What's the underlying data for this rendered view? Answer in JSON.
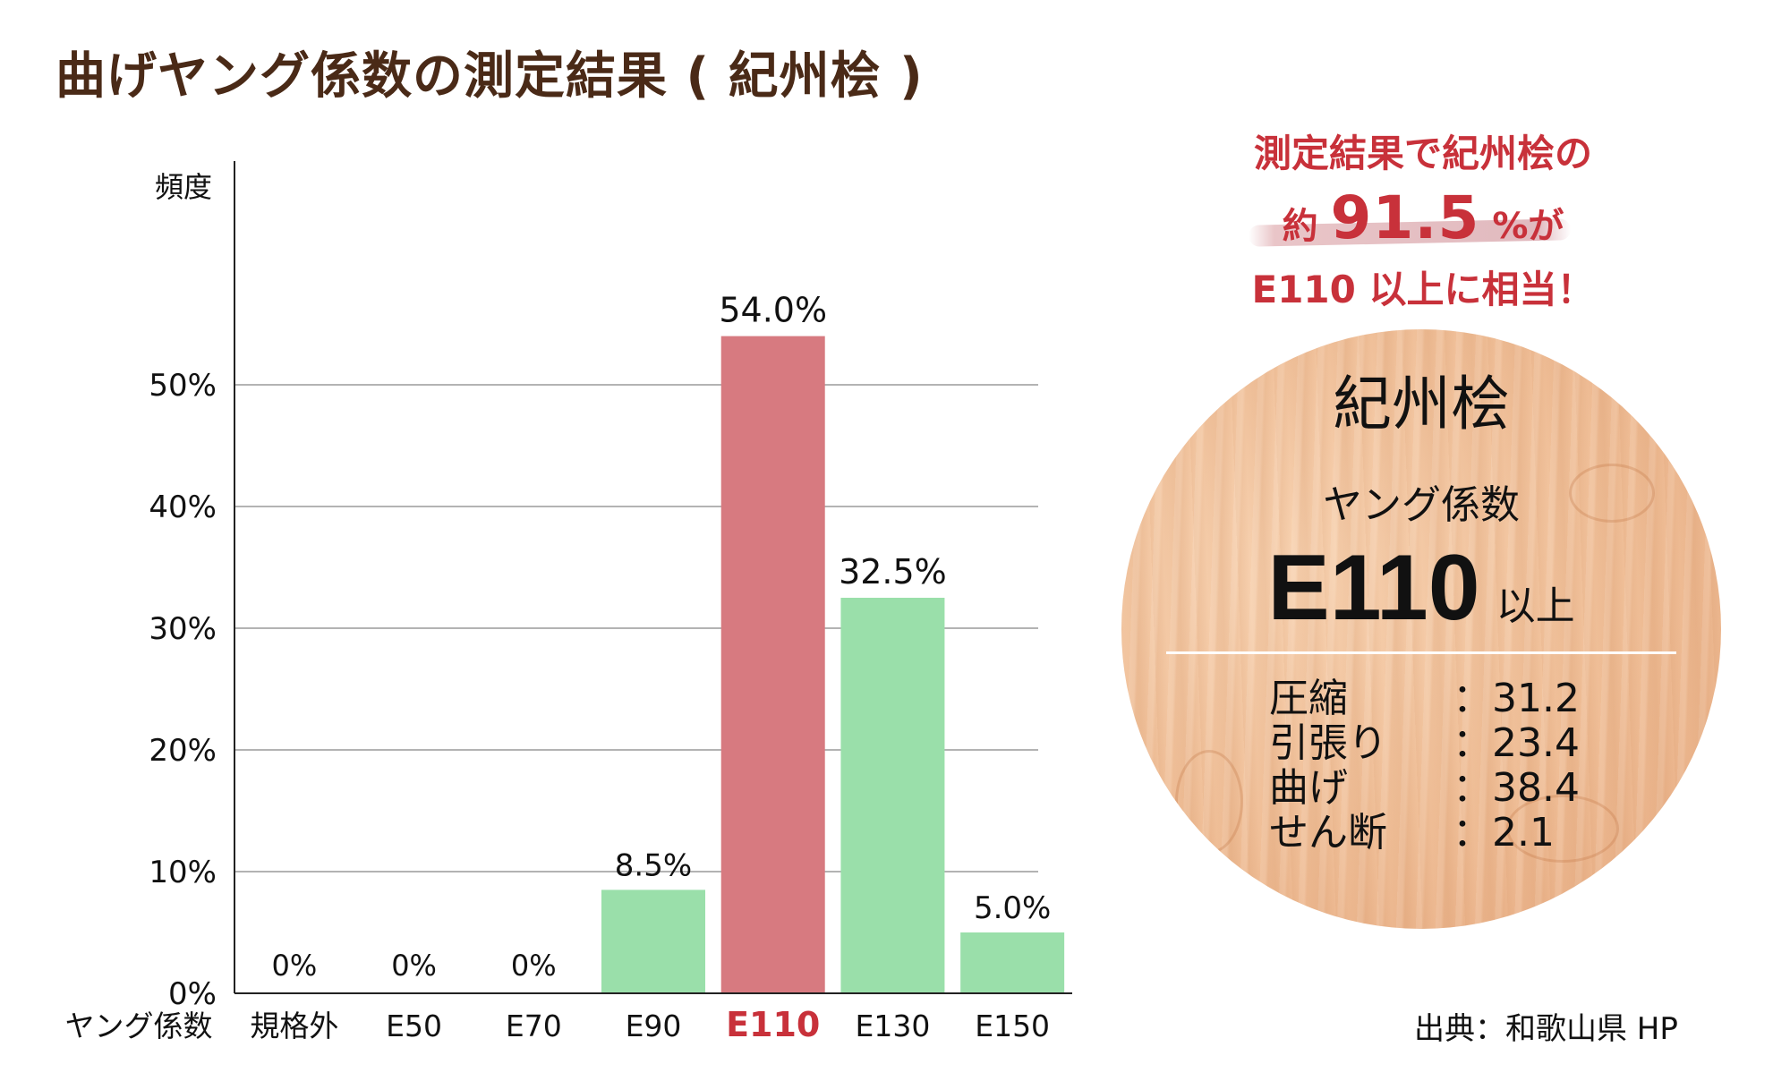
{
  "title": "曲げヤング係数の測定結果 ( 紀州桧 )",
  "chart_data": {
    "type": "bar",
    "ylabel": "頻度",
    "xlabel": "ヤング係数",
    "ylim": [
      0,
      50
    ],
    "yticks": [
      "0%",
      "10%",
      "20%",
      "30%",
      "40%",
      "50%"
    ],
    "categories": [
      "規格外",
      "E50",
      "E70",
      "E90",
      "E110",
      "E130",
      "E150"
    ],
    "values": [
      0,
      0,
      0,
      8.5,
      54.0,
      32.5,
      5.0
    ],
    "data_labels": [
      "0%",
      "0%",
      "0%",
      "8.5%",
      "54.0%",
      "32.5%",
      "5.0%"
    ],
    "highlight_category": "E110",
    "grid": true,
    "colors": {
      "bar": "#9adfaa",
      "highlight": "#d77a80",
      "highlight_label": "#c8313a",
      "grid": "#9a9a9a"
    }
  },
  "callout": {
    "line1": "測定結果で紀州桧の",
    "line2_prefix": "約",
    "line2_value": "91.5",
    "line2_suffix": "%が",
    "line3": "E110 以上に相当！"
  },
  "wood_panel": {
    "name": "紀州桧",
    "modulus_label": "ヤング係数",
    "grade": "E110",
    "grade_suffix": "以上",
    "specs": [
      {
        "label": "圧縮",
        "value": "：31.2"
      },
      {
        "label": "引張り",
        "value": "：23.4"
      },
      {
        "label": "曲げ",
        "value": "：38.4"
      },
      {
        "label": "せん断",
        "value": "：2.1"
      }
    ]
  },
  "source": "出典：和歌山県 HP"
}
